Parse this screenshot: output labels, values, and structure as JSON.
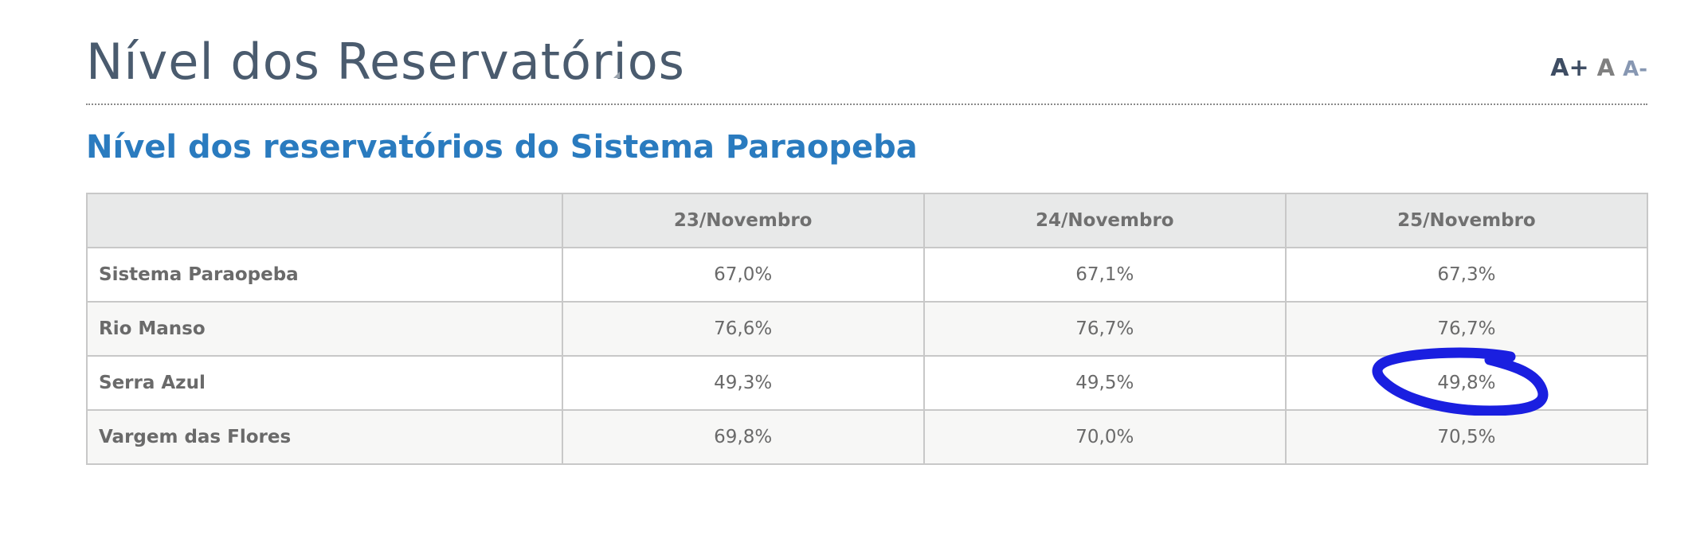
{
  "page": {
    "title": "Nível dos Reservatórios",
    "font_controls": {
      "increase": "A+",
      "normal": "A",
      "decrease": "A-"
    }
  },
  "section": {
    "title": "Nível dos reservatórios do Sistema Paraopeba"
  },
  "table": {
    "headers": [
      "",
      "23/Novembro",
      "24/Novembro",
      "25/Novembro"
    ],
    "rows": [
      {
        "name": "Sistema Paraopeba",
        "values": [
          "67,0%",
          "67,1%",
          "67,3%"
        ]
      },
      {
        "name": "Rio Manso",
        "values": [
          "76,6%",
          "76,7%",
          "76,7%"
        ]
      },
      {
        "name": "Serra Azul",
        "values": [
          "49,3%",
          "49,5%",
          "49,8%"
        ]
      },
      {
        "name": "Vargem das Flores",
        "values": [
          "69,8%",
          "70,0%",
          "70,5%"
        ]
      }
    ]
  },
  "annotation": {
    "color": "#1a1fe0",
    "shape": "hand-drawn-circle",
    "target": "Serra Azul 25/Novembro"
  },
  "colors": {
    "page_title": "#4a5b6e",
    "section_title": "#2a7bbf",
    "header_bg": "#e8e9e9",
    "border": "#c8c8c8",
    "text": "#6a6a6a"
  }
}
